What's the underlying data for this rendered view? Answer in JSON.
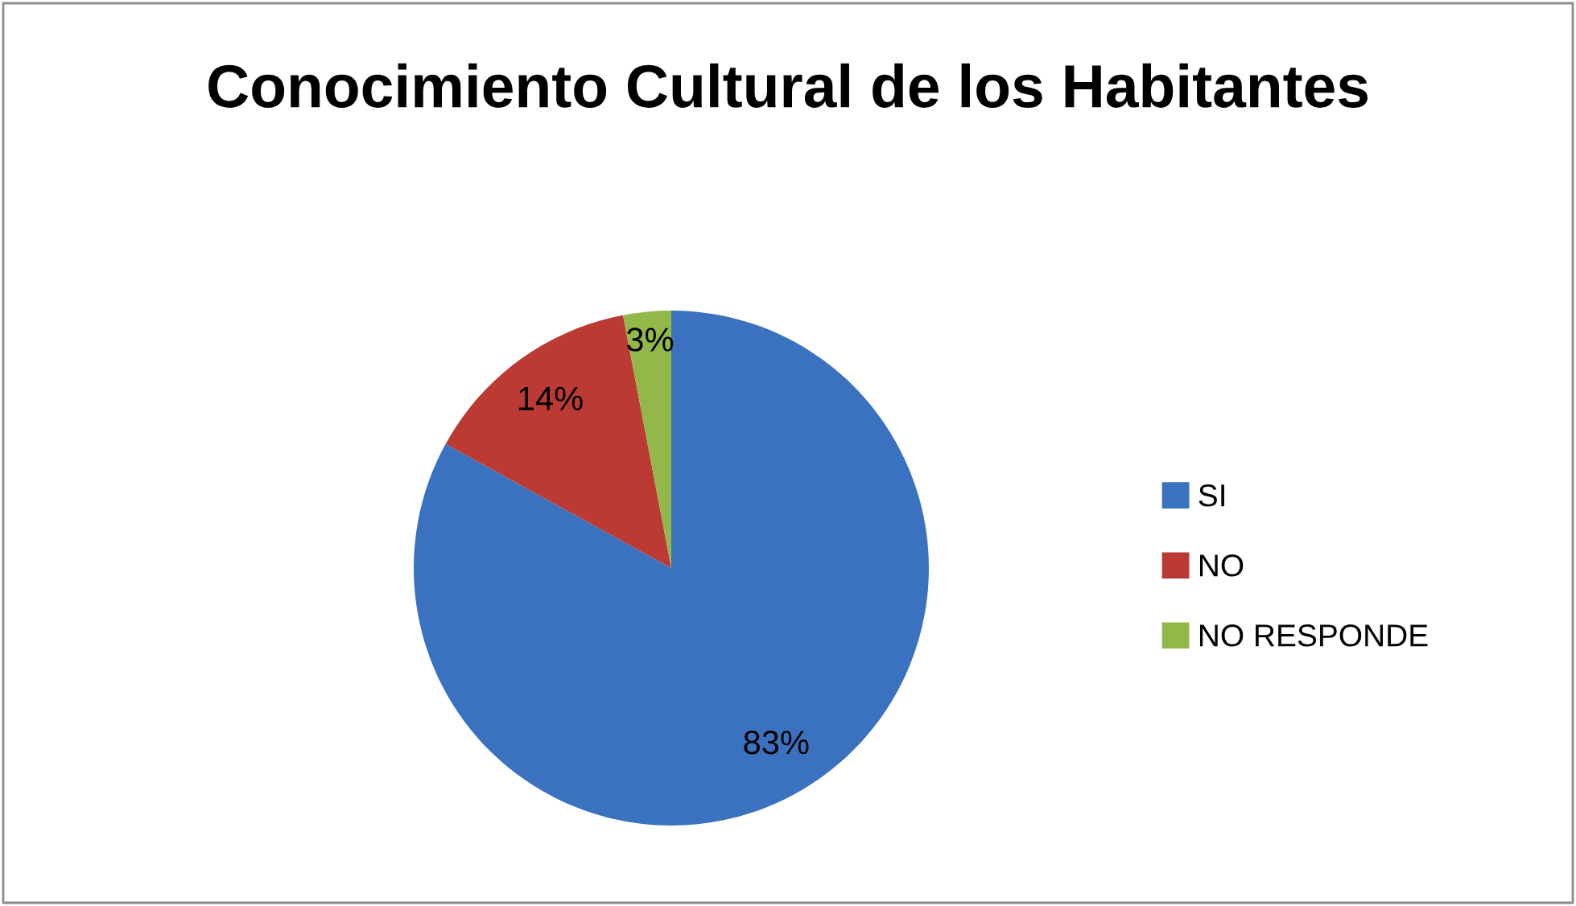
{
  "chart_data": {
    "type": "pie",
    "title": "Conocimiento Cultural de los Habitantes",
    "categories": [
      "SI",
      "NO",
      "NO RESPONDE"
    ],
    "values": [
      83,
      14,
      3
    ],
    "colors": [
      "#3a72c0",
      "#bb3a34",
      "#93b84a"
    ],
    "value_labels": [
      "83%",
      "14%",
      "3%"
    ],
    "legend": "right"
  }
}
